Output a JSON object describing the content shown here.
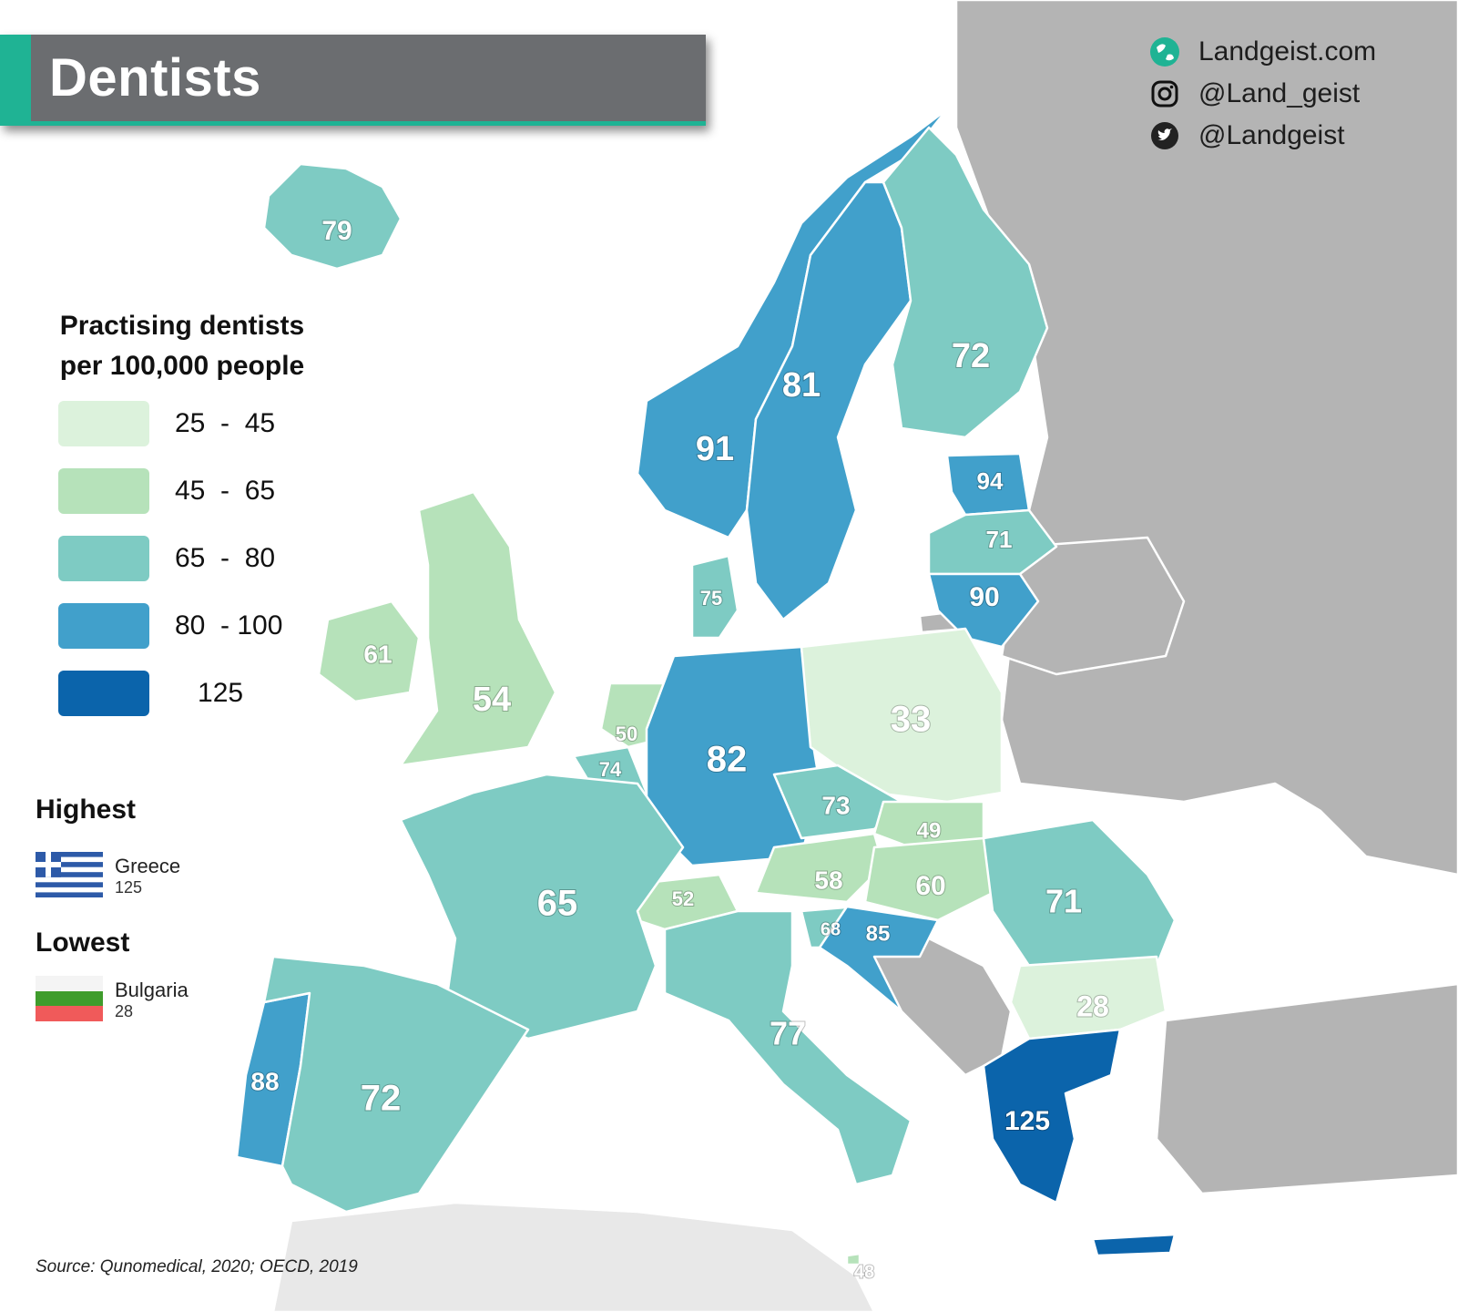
{
  "title": "Dentists",
  "branding": {
    "website": "Landgeist.com",
    "instagram": "@Land_geist",
    "twitter": "@Landgeist",
    "website_icon": "globe-icon",
    "instagram_icon": "instagram-icon",
    "twitter_icon": "twitter-icon"
  },
  "legend": {
    "title_line1": "Practising dentists",
    "title_line2": "per 100,000 people",
    "items": [
      {
        "label": "25  -  45",
        "color": "#dcf2dc"
      },
      {
        "label": "45  -  65",
        "color": "#b6e2ba"
      },
      {
        "label": "65  -  80",
        "color": "#7ecbc3"
      },
      {
        "label": "80  - 100",
        "color": "#41a0cb"
      },
      {
        "label": "   125",
        "color": "#0b64ab"
      }
    ]
  },
  "extremes": {
    "highest_label": "Highest",
    "highest_country": "Greece",
    "highest_value": "125",
    "lowest_label": "Lowest",
    "lowest_country": "Bulgaria",
    "lowest_value": "28"
  },
  "source": "Source: Qunomedical, 2020; OECD, 2019",
  "colors": {
    "no_data": "#b4b4b4",
    "sea": "#ffffff",
    "title_bar": "#6b6d70",
    "accent": "#1fb394"
  },
  "map_data": {
    "type": "choropleth",
    "metric": "Practising dentists per 100,000 people",
    "regions": [
      {
        "country": "Iceland",
        "value": 79
      },
      {
        "country": "Norway",
        "value": 91
      },
      {
        "country": "Sweden",
        "value": 81
      },
      {
        "country": "Finland",
        "value": 72
      },
      {
        "country": "Estonia",
        "value": 94
      },
      {
        "country": "Latvia",
        "value": 71
      },
      {
        "country": "Lithuania",
        "value": 90
      },
      {
        "country": "Denmark",
        "value": 75
      },
      {
        "country": "Ireland",
        "value": 61
      },
      {
        "country": "United Kingdom",
        "value": 54
      },
      {
        "country": "Netherlands",
        "value": 50
      },
      {
        "country": "Belgium",
        "value": 74
      },
      {
        "country": "Germany",
        "value": 82
      },
      {
        "country": "Poland",
        "value": 33
      },
      {
        "country": "Czechia",
        "value": 73
      },
      {
        "country": "Slovakia",
        "value": 49
      },
      {
        "country": "Austria",
        "value": 58
      },
      {
        "country": "Hungary",
        "value": 60
      },
      {
        "country": "Romania",
        "value": 71
      },
      {
        "country": "Switzerland",
        "value": 52
      },
      {
        "country": "France",
        "value": 65
      },
      {
        "country": "Slovenia",
        "value": 68
      },
      {
        "country": "Croatia",
        "value": 85
      },
      {
        "country": "Bulgaria",
        "value": 28
      },
      {
        "country": "Italy",
        "value": 77
      },
      {
        "country": "Portugal",
        "value": 88
      },
      {
        "country": "Spain",
        "value": 72
      },
      {
        "country": "Greece",
        "value": 125
      },
      {
        "country": "Malta",
        "value": 48
      }
    ]
  }
}
